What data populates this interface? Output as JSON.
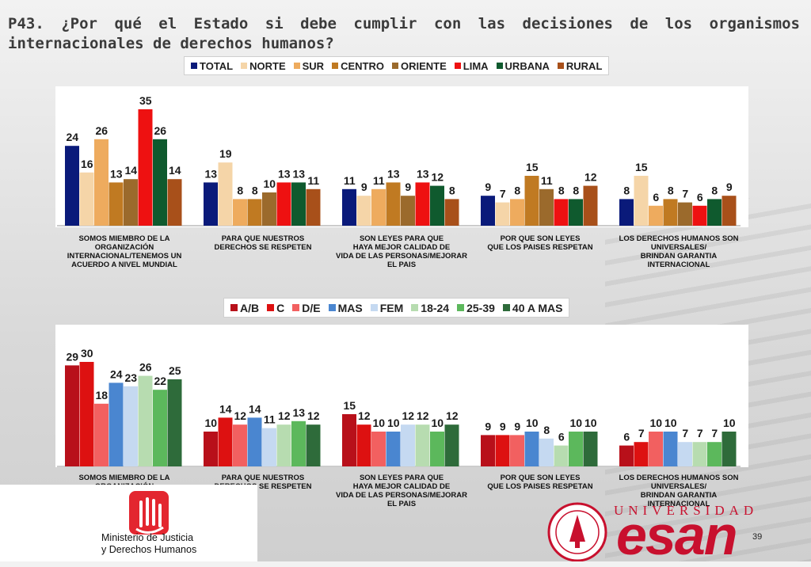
{
  "title": "P43. ¿Por qué el Estado si debe cumplir con las decisiones de los organismos internacionales de derechos humanos?",
  "categories": [
    "SOMOS MIEMBRO DE LA\nORGANIZACIÓN\nINTERNACIONAL/TENEMOS UN\nACUERDO A NIVEL MUNDIAL",
    "PARA QUE NUESTROS\nDERECHOS SE RESPETEN",
    "SON LEYES PARA QUE\nHAYA MEJOR CALIDAD DE\nVIDA DE LAS PERSONAS/MEJORAR\nEL PAIS",
    "POR QUE SON LEYES\nQUE LOS PAISES RESPETAN",
    "LOS DERECHOS HUMANOS SON\nUNIVERSALES/\nBRINDAN GARANTIA\nINTERNACIONAL"
  ],
  "chart_data": [
    {
      "type": "bar",
      "categories": [
        "SOMOS MIEMBRO DE LA ORGANIZACIÓN INTERNACIONAL/TENEMOS UN ACUERDO A NIVEL MUNDIAL",
        "PARA QUE NUESTROS DERECHOS SE RESPETEN",
        "SON LEYES PARA QUE HAYA MEJOR CALIDAD DE VIDA DE LAS PERSONAS/MEJORAR EL PAIS",
        "POR QUE SON LEYES QUE LOS PAISES RESPETAN",
        "LOS DERECHOS HUMANOS SON UNIVERSALES/ BRINDAN GARANTIA INTERNACIONAL"
      ],
      "ylim": [
        0,
        40
      ],
      "legend_position": "top",
      "series": [
        {
          "name": "TOTAL",
          "color": "#0a1a7a",
          "values": [
            24,
            13,
            11,
            9,
            8
          ]
        },
        {
          "name": "NORTE",
          "color": "#f5d5a8",
          "values": [
            16,
            19,
            9,
            7,
            15
          ]
        },
        {
          "name": "SUR",
          "color": "#eeab5e",
          "values": [
            26,
            8,
            11,
            8,
            6
          ]
        },
        {
          "name": "CENTRO",
          "color": "#c07a22",
          "values": [
            13,
            8,
            13,
            15,
            8
          ]
        },
        {
          "name": "ORIENTE",
          "color": "#9b6a2c",
          "values": [
            14,
            10,
            9,
            11,
            7
          ]
        },
        {
          "name": "LIMA",
          "color": "#ee1111",
          "values": [
            35,
            13,
            13,
            8,
            6
          ]
        },
        {
          "name": "URBANA",
          "color": "#0f5a2e",
          "values": [
            26,
            13,
            12,
            8,
            8
          ]
        },
        {
          "name": "RURAL",
          "color": "#a8501a",
          "values": [
            14,
            11,
            8,
            12,
            9
          ]
        }
      ]
    },
    {
      "type": "bar",
      "categories": [
        "SOMOS MIEMBRO DE LA ORGANIZACIÓN INTERNACIONAL/TENEMOS UN ACUERDO A NIVEL MUNDIAL",
        "PARA QUE NUESTROS DERECHOS SE RESPETEN",
        "SON LEYES PARA QUE HAYA MEJOR CALIDAD DE VIDA DE LAS PERSONAS/MEJORAR EL PAIS",
        "POR QUE SON LEYES QUE LOS PAISES RESPETAN",
        "LOS DERECHOS HUMANOS SON UNIVERSALES/ BRINDAN GARANTIA INTERNACIONAL"
      ],
      "ylim": [
        0,
        40
      ],
      "legend_position": "top",
      "series": [
        {
          "name": "A/B",
          "color": "#b8101a",
          "values": [
            29,
            10,
            15,
            9,
            6
          ]
        },
        {
          "name": "C",
          "color": "#dd1111",
          "values": [
            30,
            14,
            12,
            9,
            7
          ]
        },
        {
          "name": "D/E",
          "color": "#f26060",
          "values": [
            18,
            12,
            10,
            9,
            10
          ]
        },
        {
          "name": "MAS",
          "color": "#4a86d0",
          "values": [
            24,
            14,
            10,
            10,
            10
          ]
        },
        {
          "name": "FEM",
          "color": "#c5d9f1",
          "values": [
            23,
            11,
            12,
            8,
            7
          ]
        },
        {
          "name": "18-24",
          "color": "#b7dcb0",
          "values": [
            26,
            12,
            12,
            6,
            7
          ]
        },
        {
          "name": "25-39",
          "color": "#5cb85c",
          "values": [
            22,
            13,
            10,
            10,
            7
          ]
        },
        {
          "name": "40 A MAS",
          "color": "#2e6b3a",
          "values": [
            25,
            12,
            12,
            10,
            10
          ]
        }
      ]
    }
  ],
  "logos": {
    "ministerio": "Ministerio de Justicia\ny Derechos Humanos",
    "universidad": "UNIVERSIDAD",
    "esan": "esan"
  },
  "page_number": "39"
}
